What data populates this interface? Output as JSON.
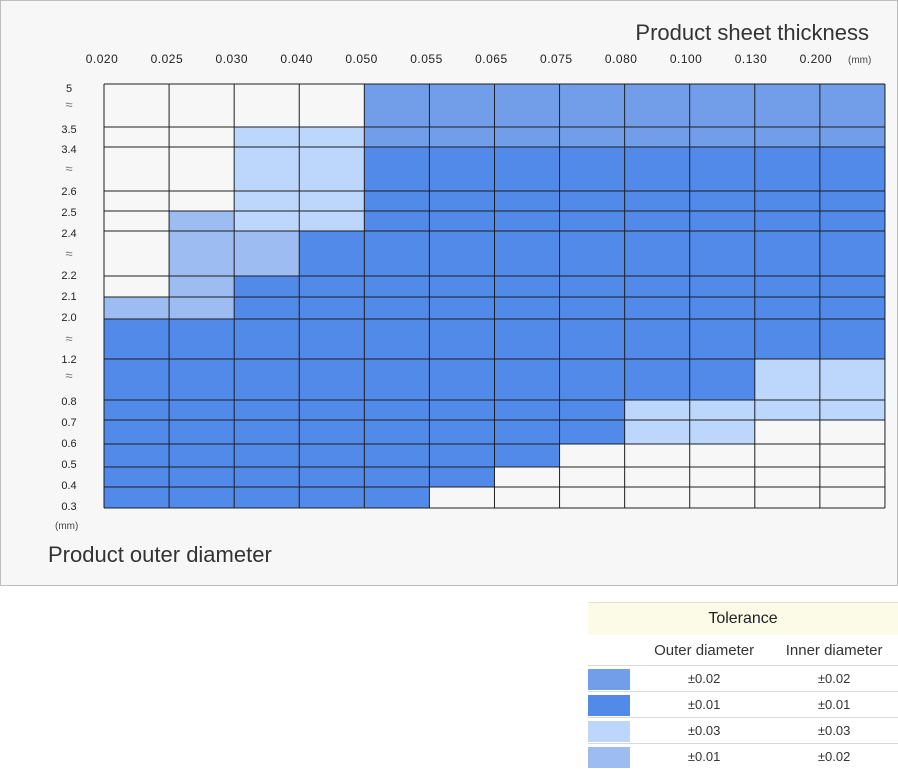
{
  "chart_data": {
    "type": "heatmap",
    "title": "Product sheet thickness",
    "xlabel": "Product sheet thickness",
    "ylabel": "Product outer diameter",
    "x_unit": "(mm)",
    "y_unit": "(mm)",
    "x_categories": [
      "0.020",
      "0.025",
      "0.030",
      "0.040",
      "0.050",
      "0.055",
      "0.065",
      "0.075",
      "0.080",
      "0.100",
      "0.130",
      "0.200"
    ],
    "y_labels": [
      "5",
      "≈",
      "3.5",
      "3.4",
      "≈",
      "2.6",
      "2.5",
      "2.4",
      "≈",
      "2.2",
      "2.1",
      "2.0",
      "≈",
      "1.2",
      "≈",
      "0.8",
      "0.7",
      "0.6",
      "0.5",
      "0.4",
      "0.3"
    ],
    "y_bands": [
      {
        "from": "5",
        "to": "3.5",
        "cells": [
          0,
          0,
          0,
          0,
          1,
          1,
          1,
          1,
          1,
          1,
          1,
          1
        ]
      },
      {
        "from": "3.5",
        "to": "3.4",
        "cells": [
          0,
          0,
          3,
          3,
          1,
          1,
          1,
          1,
          1,
          1,
          1,
          1
        ]
      },
      {
        "from": "3.4",
        "to": "2.6",
        "cells": [
          0,
          0,
          3,
          3,
          2,
          2,
          2,
          2,
          2,
          2,
          2,
          2
        ]
      },
      {
        "from": "2.6",
        "to": "2.5",
        "cells": [
          0,
          0,
          3,
          3,
          2,
          2,
          2,
          2,
          2,
          2,
          2,
          2
        ]
      },
      {
        "from": "2.5",
        "to": "2.4",
        "cells": [
          0,
          4,
          3,
          3,
          2,
          2,
          2,
          2,
          2,
          2,
          2,
          2
        ]
      },
      {
        "from": "2.4",
        "to": "2.2",
        "cells": [
          0,
          4,
          4,
          2,
          2,
          2,
          2,
          2,
          2,
          2,
          2,
          2
        ]
      },
      {
        "from": "2.2",
        "to": "2.1",
        "cells": [
          0,
          4,
          2,
          2,
          2,
          2,
          2,
          2,
          2,
          2,
          2,
          2
        ]
      },
      {
        "from": "2.1",
        "to": "2.0",
        "cells": [
          4,
          4,
          2,
          2,
          2,
          2,
          2,
          2,
          2,
          2,
          2,
          2
        ]
      },
      {
        "from": "2.0",
        "to": "1.2",
        "cells": [
          2,
          2,
          2,
          2,
          2,
          2,
          2,
          2,
          2,
          2,
          2,
          2
        ]
      },
      {
        "from": "1.2",
        "to": "0.8",
        "cells": [
          2,
          2,
          2,
          2,
          2,
          2,
          2,
          2,
          2,
          2,
          3,
          3
        ]
      },
      {
        "from": "0.8",
        "to": "0.7",
        "cells": [
          2,
          2,
          2,
          2,
          2,
          2,
          2,
          2,
          3,
          3,
          3,
          3
        ]
      },
      {
        "from": "0.7",
        "to": "0.6",
        "cells": [
          2,
          2,
          2,
          2,
          2,
          2,
          2,
          2,
          3,
          3,
          0,
          0
        ]
      },
      {
        "from": "0.6",
        "to": "0.5",
        "cells": [
          2,
          2,
          2,
          2,
          2,
          2,
          2,
          0,
          0,
          0,
          0,
          0
        ]
      },
      {
        "from": "0.5",
        "to": "0.4",
        "cells": [
          2,
          2,
          2,
          2,
          2,
          2,
          0,
          0,
          0,
          0,
          0,
          0
        ]
      },
      {
        "from": "0.4",
        "to": "0.3",
        "cells": [
          2,
          2,
          2,
          2,
          2,
          0,
          0,
          0,
          0,
          0,
          0,
          0
        ]
      }
    ],
    "legend": {
      "title": "Tolerance",
      "columns": [
        "Outer diameter",
        "Inner diameter"
      ],
      "entries": [
        {
          "level": 1,
          "outer": "±0.02",
          "inner": "±0.02"
        },
        {
          "level": 2,
          "outer": "±0.01",
          "inner": "±0.01"
        },
        {
          "level": 3,
          "outer": "±0.03",
          "inner": "±0.03"
        },
        {
          "level": 4,
          "outer": "±0.01",
          "inner": "±0.02"
        }
      ]
    }
  },
  "colors": {
    "empty": "#f7f7f7",
    "level_1": "#729ee9",
    "level_2": "#528aea",
    "level_3": "#bdd6fb",
    "level_4": "#9dbcf2",
    "grid": "#1f1f1f"
  }
}
